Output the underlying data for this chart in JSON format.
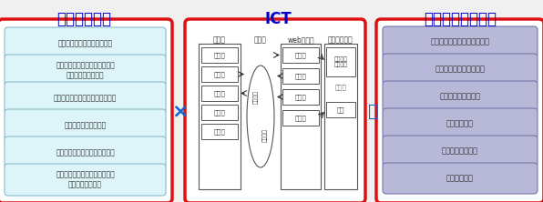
{
  "title_left": "ビジネス方法",
  "title_center": "ICT",
  "title_right": "ビジネス関連発明",
  "left_items": [
    "販売管理、ポイントサービス",
    "物流、生産管理、流通、配送、\n工程管理、在庫管理",
    "注文、仲介、広告、顧客情報管理",
    "銀行、保险、証券業務",
    "企業会計、給与管理、人事管理",
    "情報検索、ビッグデータ解析、\n認証、決済、課金"
  ],
  "right_items": [
    "販売、サービス支援システム",
    "統合的生産管理システム",
    "電子商取引システム",
    "金融システム",
    "社内業務システム",
    "基盤システム"
  ],
  "sm_items": [
    "撃像部",
    "送信部",
    "受信部",
    "算出部",
    "表示部"
  ],
  "web_items": [
    "受信部",
    "確認部",
    "送信部",
    "管理部"
  ],
  "db_item1": "識別情報\n提供情報",
  "db_item2": "履歴",
  "label_sm": "スマホ",
  "label_tsushin": "通信網",
  "label_web": "webサーバ",
  "label_db": "データベース",
  "label_shikibetsu": "識別番号",
  "label_teikyou": "提供情報",
  "outer_border_color": "#dd1111",
  "left_box_bg": "#ddf4f8",
  "left_box_border": "#88bbcc",
  "right_box_bg": "#b8b8d8",
  "right_box_border": "#7777aa",
  "bg_color": "#f0f0f0",
  "title_color": "#0000cc",
  "operator_color": "#1166cc",
  "box_text_color": "#333333",
  "ict_box_color": "#555555"
}
